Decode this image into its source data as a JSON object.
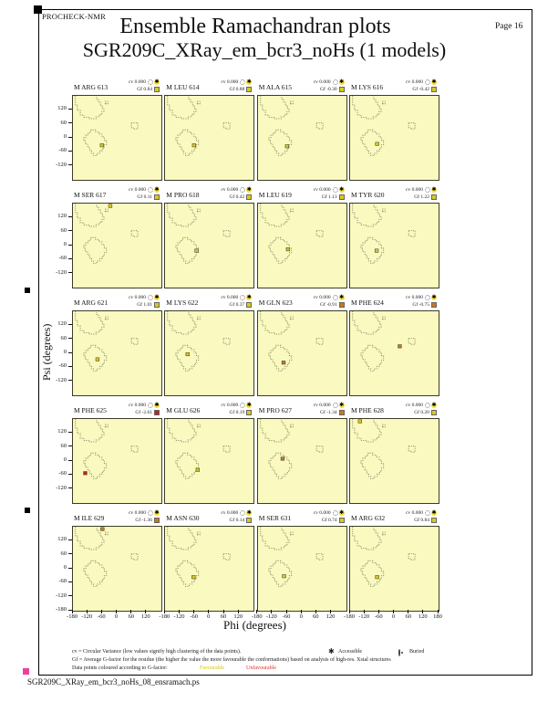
{
  "page": {
    "app": "PROCHECK-NMR",
    "title": "Ensemble Ramachandran plots",
    "page_label": "Page 16",
    "subtitle": "SGR209C_XRay_em_bcr3_noHs (1 models)",
    "filename": "SGR209C_XRay_em_bcr3_noHs_08_ensramach.ps"
  },
  "axes": {
    "x_label": "Phi (degrees)",
    "y_label": "Psi (degrees)"
  },
  "legend": {
    "line1": "cv = Circular Variance (low values signify high clustering of the data points).",
    "accessible_label": "Accessible",
    "buried_label": "Buried",
    "line2": "Gf = Average G-factor for the residue (the higher the value the more favourable the conformations) based on analysis of high-res. Xstal structures",
    "line3": "Data points coloured according to G-factor:",
    "favourable_label": "Favourable",
    "unfavourable_label": "Unfavourable"
  },
  "colors": {
    "plot_bg": "#fafac0",
    "region_outline": "#8e8e6e",
    "levels": {
      "yellow": "#d9c91e",
      "orange": "#c87820",
      "red": "#c42020"
    },
    "magenta_mark": "#ee3fa0"
  },
  "chart_data": {
    "type": "scatter",
    "subplot_grid": [
      5,
      4
    ],
    "x_range": [
      -180,
      180
    ],
    "y_range": [
      -180,
      180
    ],
    "xlabel": "Phi (degrees)",
    "ylabel": "Psi (degrees)",
    "x_ticks": [
      -180,
      -120,
      -60,
      0,
      60,
      120
    ],
    "x_end_tick": 180,
    "y_ticks": [
      120,
      60,
      0,
      -60,
      -120
    ],
    "y_end_tick": -180,
    "cv_prefix": "cv",
    "gf_prefix": "Gf",
    "plots": [
      {
        "residue": "M ARG 613",
        "cv": "0.000",
        "gf": "0.84",
        "level": "yellow",
        "phi": -62,
        "psi": -32
      },
      {
        "residue": "M LEU 614",
        "cv": "0.000",
        "gf": "0.88",
        "level": "yellow",
        "phi": -62,
        "psi": -32
      },
      {
        "residue": "M ALA 615",
        "cv": "0.000",
        "gf": "-0.30",
        "level": "yellow",
        "phi": -62,
        "psi": -36
      },
      {
        "residue": "M LYS 616",
        "cv": "0.000",
        "gf": "-0.42",
        "level": "yellow",
        "phi": -70,
        "psi": -26
      },
      {
        "residue": "M SER 617",
        "cv": "0.000",
        "gf": "0.11",
        "level": "yellow",
        "phi": -28,
        "psi": 170
      },
      {
        "residue": "M PRO 618",
        "cv": "0.000",
        "gf": "0.42",
        "level": "yellow",
        "phi": -52,
        "psi": -22
      },
      {
        "residue": "M LEU 619",
        "cv": "0.000",
        "gf": "1.13",
        "level": "yellow",
        "phi": -58,
        "psi": -16
      },
      {
        "residue": "M TYR 620",
        "cv": "0.000",
        "gf": "1.22",
        "level": "yellow",
        "phi": -72,
        "psi": -22
      },
      {
        "residue": "M ARG 621",
        "cv": "0.000",
        "gf": "1.01",
        "level": "yellow",
        "phi": -80,
        "psi": -26
      },
      {
        "residue": "M LYS 622",
        "cv": "0.000",
        "gf": "0.37",
        "level": "yellow",
        "phi": -88,
        "psi": -4
      },
      {
        "residue": "M GLN 623",
        "cv": "0.000",
        "gf": "-0.91",
        "level": "orange",
        "phi": -76,
        "psi": -40
      },
      {
        "residue": "M PHE 624",
        "cv": "0.000",
        "gf": "-0.75",
        "level": "orange",
        "phi": 22,
        "psi": 30
      },
      {
        "residue": "M PHE 625",
        "cv": "0.000",
        "gf": "-2.61",
        "level": "red",
        "phi": -130,
        "psi": -52
      },
      {
        "residue": "M GLU 626",
        "cv": "0.000",
        "gf": "0.19",
        "level": "yellow",
        "phi": -47,
        "psi": -38
      },
      {
        "residue": "M PRO 627",
        "cv": "0.000",
        "gf": "-1.34",
        "level": "orange",
        "phi": -80,
        "psi": 10
      },
      {
        "residue": "M PHE 628",
        "cv": "0.000",
        "gf": "0.20",
        "level": "yellow",
        "phi": -140,
        "psi": 170
      },
      {
        "residue": "M ILE 629",
        "cv": "0.000",
        "gf": "-1.36",
        "level": "orange",
        "phi": -60,
        "psi": 170
      },
      {
        "residue": "M ASN 630",
        "cv": "0.000",
        "gf": "0.14",
        "level": "yellow",
        "phi": -64,
        "psi": -36
      },
      {
        "residue": "M SER 631",
        "cv": "0.000",
        "gf": "0.74",
        "level": "yellow",
        "phi": -74,
        "psi": -32
      },
      {
        "residue": "M ARG 632",
        "cv": "0.000",
        "gf": "0.84",
        "level": "yellow",
        "phi": -70,
        "psi": -36
      }
    ]
  }
}
